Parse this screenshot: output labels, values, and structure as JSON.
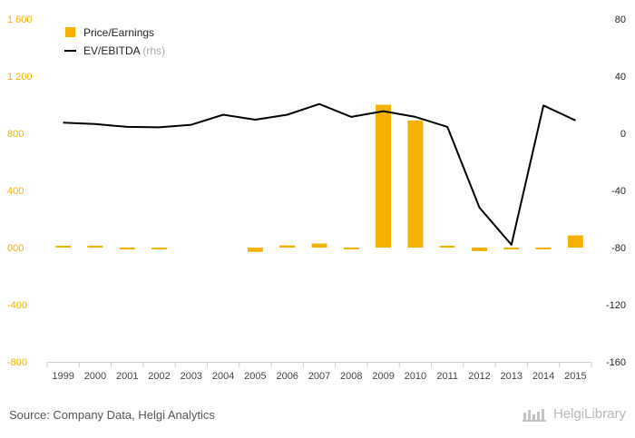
{
  "chart_data": {
    "type": "bar",
    "categories": [
      "1999",
      "2000",
      "2001",
      "2002",
      "2003",
      "2004",
      "2005",
      "2006",
      "2007",
      "2008",
      "2009",
      "2010",
      "2011",
      "2012",
      "2013",
      "2014",
      "2015"
    ],
    "series": [
      {
        "name": "Price/Earnings",
        "type": "bar",
        "axis": "left",
        "color": "#f5b000",
        "values": [
          10,
          8,
          -5,
          -8,
          0,
          0,
          -30,
          15,
          28,
          -6,
          1000,
          890,
          10,
          -25,
          -6,
          -12,
          85
        ]
      },
      {
        "name": "EV/EBITDA",
        "type": "line",
        "axis": "right",
        "color": "#000000",
        "values": [
          7.5,
          6.5,
          4.5,
          4.2,
          6,
          13,
          9.5,
          13,
          20.5,
          11.5,
          15.5,
          11.5,
          4.5,
          -52,
          -78,
          19.5,
          9
        ]
      }
    ],
    "y_left": {
      "min": -800,
      "max": 1600,
      "ticks": [
        -800,
        -400,
        0,
        400,
        800,
        1200,
        1600
      ],
      "tick_labels": [
        "-800",
        "-400",
        "000",
        "400",
        "800",
        "1 200",
        "1 600"
      ]
    },
    "y_right": {
      "min": -160,
      "max": 80,
      "ticks": [
        -160,
        -120,
        -80,
        -40,
        0,
        40,
        80
      ],
      "tick_labels": [
        "-160",
        "-120",
        "-80",
        "-40",
        "0",
        "40",
        "80"
      ]
    },
    "legend": {
      "placement": "top-left",
      "items": [
        {
          "label": "Price/Earnings",
          "note": ""
        },
        {
          "label": "EV/EBITDA",
          "note": "(rhs)"
        }
      ]
    },
    "grid": false
  },
  "footer": {
    "source": "Source: Company Data, Helgi Analytics",
    "brand": "HelgiLibrary"
  }
}
